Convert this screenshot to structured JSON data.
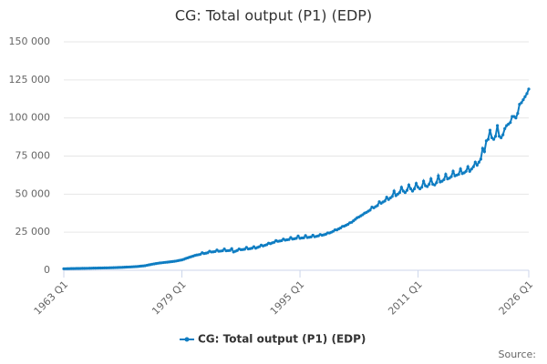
{
  "chart_data": {
    "type": "line",
    "title": "CG: Total output (P1) (EDP)",
    "source": "Source:",
    "categories": [
      "1963 Q1",
      null,
      null,
      null,
      null,
      null,
      null,
      null,
      null,
      null,
      null,
      null,
      null,
      null,
      null,
      null,
      null,
      null,
      null,
      null,
      null,
      null,
      null,
      null,
      null,
      null,
      null,
      null,
      null,
      null,
      null,
      null,
      null,
      null,
      null,
      null,
      null,
      null,
      null,
      null,
      null,
      null,
      null,
      null,
      null,
      null,
      null,
      null,
      null,
      null,
      null,
      null,
      null,
      null,
      null,
      null,
      null,
      null,
      null,
      null,
      null,
      null,
      null,
      null,
      "1979 Q1",
      null,
      null,
      null,
      null,
      null,
      null,
      null,
      null,
      null,
      null,
      null,
      null,
      null,
      null,
      null,
      null,
      null,
      null,
      null,
      null,
      null,
      null,
      null,
      null,
      null,
      null,
      null,
      null,
      null,
      null,
      null,
      null,
      null,
      null,
      null,
      null,
      null,
      null,
      null,
      null,
      null,
      null,
      null,
      null,
      null,
      null,
      null,
      null,
      null,
      null,
      null,
      null,
      null,
      null,
      null,
      null,
      null,
      null,
      null,
      null,
      null,
      null,
      null,
      "1995 Q1",
      null,
      null,
      null,
      null,
      null,
      null,
      null,
      null,
      null,
      null,
      null,
      null,
      null,
      null,
      null,
      null,
      null,
      null,
      null,
      null,
      null,
      null,
      null,
      null,
      null,
      null,
      null,
      null,
      null,
      null,
      null,
      null,
      null,
      null,
      null,
      null,
      null,
      null,
      null,
      null,
      null,
      null,
      null,
      null,
      null,
      null,
      null,
      null,
      null,
      null,
      null,
      null,
      null,
      null,
      null,
      null,
      null,
      null,
      null,
      null,
      null,
      null,
      null,
      "2011 Q1",
      null,
      null,
      null,
      null,
      null,
      null,
      null,
      null,
      null,
      null,
      null,
      null,
      null,
      null,
      null,
      null,
      null,
      null,
      null,
      null,
      null,
      null,
      null,
      null,
      null,
      null,
      null,
      null,
      null,
      null,
      null,
      null,
      null,
      null,
      null,
      null,
      null,
      null,
      null,
      null,
      null,
      null,
      null,
      null,
      null,
      null,
      null,
      null,
      null,
      null,
      null,
      null,
      null,
      null,
      null,
      null,
      null,
      null,
      null,
      "2026 Q1"
    ],
    "series": [
      {
        "name": "CG: Total output (P1) (EDP)",
        "color": "#0f7dc2",
        "values": [
          1000,
          1020,
          1050,
          1080,
          1100,
          1120,
          1150,
          1180,
          1200,
          1220,
          1250,
          1280,
          1300,
          1320,
          1350,
          1380,
          1400,
          1420,
          1450,
          1480,
          1500,
          1520,
          1550,
          1580,
          1600,
          1630,
          1670,
          1710,
          1750,
          1800,
          1850,
          1900,
          1950,
          2000,
          2070,
          2130,
          2200,
          2270,
          2350,
          2420,
          2500,
          2620,
          2750,
          2870,
          3000,
          3250,
          3500,
          3750,
          4000,
          4200,
          4400,
          4600,
          4800,
          4900,
          5050,
          5200,
          5300,
          5450,
          5600,
          5750,
          5900,
          6100,
          6350,
          6600,
          6800,
          7200,
          7700,
          8100,
          8500,
          8900,
          9300,
          9700,
          10000,
          10200,
          10500,
          11500,
          11000,
          11200,
          11500,
          12500,
          12000,
          12100,
          12300,
          13300,
          12500,
          12600,
          12800,
          14000,
          12800,
          12900,
          13000,
          14200,
          12000,
          12500,
          13000,
          14000,
          13500,
          13600,
          13800,
          15000,
          14000,
          14200,
          14500,
          15500,
          14500,
          15000,
          15500,
          16500,
          16000,
          16400,
          16800,
          17800,
          17500,
          18000,
          18400,
          19500,
          19000,
          19200,
          19400,
          20500,
          19800,
          20000,
          20200,
          21500,
          20500,
          20700,
          21000,
          22500,
          21000,
          21200,
          21300,
          22800,
          21500,
          21700,
          21900,
          23000,
          22000,
          22300,
          22600,
          23500,
          23000,
          23300,
          23700,
          24500,
          24500,
          25000,
          25600,
          26500,
          26500,
          27200,
          27800,
          28800,
          29000,
          29600,
          30200,
          31200,
          31500,
          32500,
          33500,
          34500,
          35000,
          35800,
          36500,
          37500,
          38000,
          38800,
          39500,
          41500,
          41000,
          41800,
          42500,
          45000,
          44000,
          44800,
          45500,
          48000,
          46500,
          47500,
          48500,
          52000,
          49000,
          50000,
          51000,
          54500,
          52000,
          51000,
          52500,
          56000,
          53500,
          52000,
          53500,
          57000,
          54500,
          53500,
          54500,
          58500,
          55500,
          55000,
          56500,
          60000,
          56500,
          56000,
          57500,
          62000,
          58000,
          58500,
          59500,
          63000,
          60000,
          60500,
          61500,
          65000,
          62000,
          62500,
          63000,
          66500,
          63500,
          64000,
          65000,
          68000,
          65000,
          66500,
          68000,
          71000,
          69000,
          71000,
          73000,
          80000,
          78000,
          85000,
          86000,
          92000,
          87000,
          86000,
          88000,
          95000,
          88000,
          87000,
          89000,
          93000,
          95000,
          96000,
          97000,
          101000,
          101000,
          100000,
          103000,
          109000,
          110000,
          112000,
          114000,
          116000,
          119000
        ]
      }
    ],
    "ylim": [
      0,
      150000
    ],
    "yticks": [
      0,
      {
        "value": 25000,
        "label": "25 000"
      },
      {
        "value": 50000,
        "label": "50 000"
      },
      {
        "value": 75000,
        "label": "75 000"
      },
      {
        "value": 100000,
        "label": "100 000"
      },
      {
        "value": 125000,
        "label": "125 000"
      },
      {
        "value": 150000,
        "label": "150 000"
      }
    ],
    "grid": true,
    "legend": "bottom"
  }
}
